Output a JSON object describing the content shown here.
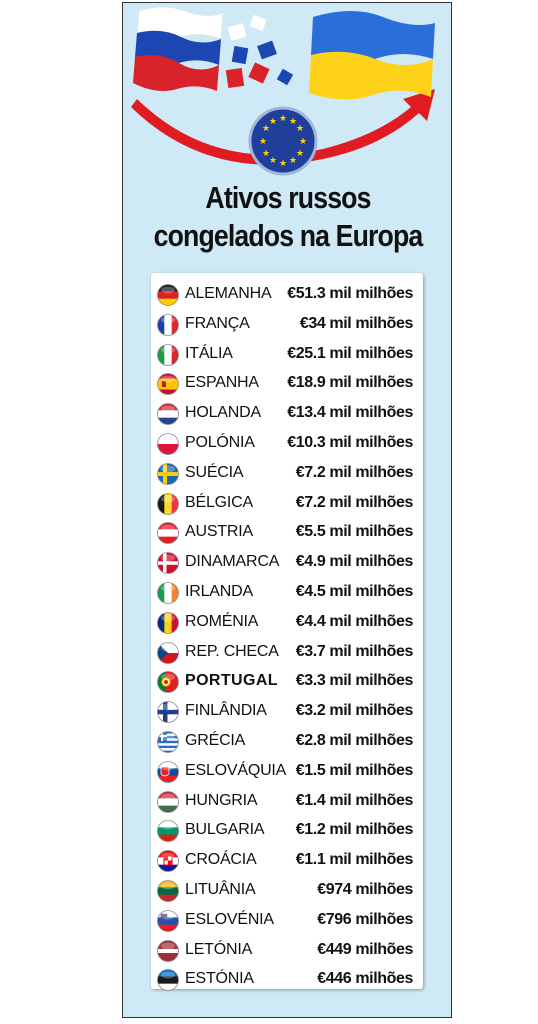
{
  "title": {
    "line1": "Ativos russos",
    "line2": "congelados na Europa"
  },
  "colors": {
    "background": "#cfe9f7",
    "arrow": "#e11b22",
    "eu_blue": "#1f3f9a",
    "eu_stars": "#ffd400"
  },
  "countries": [
    {
      "name": "ALEMANHA",
      "value": "€51.3 mil milhões",
      "flag": "germany-flag-icon"
    },
    {
      "name": "FRANÇA",
      "value": "€34 mil milhões",
      "flag": "france-flag-icon"
    },
    {
      "name": "ITÁLIA",
      "value": "€25.1 mil milhões",
      "flag": "italy-flag-icon"
    },
    {
      "name": "ESPANHA",
      "value": "€18.9 mil milhões",
      "flag": "spain-flag-icon"
    },
    {
      "name": "HOLANDA",
      "value": "€13.4 mil milhões",
      "flag": "netherlands-flag-icon"
    },
    {
      "name": "POLÓNIA",
      "value": "€10.3 mil milhões",
      "flag": "poland-flag-icon"
    },
    {
      "name": "SUÉCIA",
      "value": "€7.2 mil milhões",
      "flag": "sweden-flag-icon"
    },
    {
      "name": "BÉLGICA",
      "value": "€7.2 mil milhões",
      "flag": "belgium-flag-icon"
    },
    {
      "name": "AUSTRIA",
      "value": "€5.5 mil milhões",
      "flag": "austria-flag-icon"
    },
    {
      "name": "DINAMARCA",
      "value": "€4.9 mil milhões",
      "flag": "denmark-flag-icon"
    },
    {
      "name": "IRLANDA",
      "value": "€4.5 mil milhões",
      "flag": "ireland-flag-icon"
    },
    {
      "name": "ROMÉNIA",
      "value": "€4.4 mil milhões",
      "flag": "romania-flag-icon"
    },
    {
      "name": "REP. CHECA",
      "value": "€3.7 mil milhões",
      "flag": "czech-flag-icon"
    },
    {
      "name": "PORTUGAL",
      "value": "€3.3 mil milhões",
      "flag": "portugal-flag-icon",
      "highlight": true
    },
    {
      "name": "FINLÂNDIA",
      "value": "€3.2 mil milhões",
      "flag": "finland-flag-icon"
    },
    {
      "name": "GRÉCIA",
      "value": "€2.8 mil milhões",
      "flag": "greece-flag-icon"
    },
    {
      "name": "ESLOVÁQUIA",
      "value": "€1.5 mil milhões",
      "flag": "slovakia-flag-icon"
    },
    {
      "name": "HUNGRIA",
      "value": "€1.4 mil milhões",
      "flag": "hungary-flag-icon"
    },
    {
      "name": "BULGARIA",
      "value": "€1.2 mil milhões",
      "flag": "bulgaria-flag-icon"
    },
    {
      "name": "CROÁCIA",
      "value": "€1.1 mil milhões",
      "flag": "croatia-flag-icon"
    },
    {
      "name": "LITUÂNIA",
      "value": "€974 milhões",
      "flag": "lithuania-flag-icon"
    },
    {
      "name": "ESLOVÉNIA",
      "value": "€796 milhões",
      "flag": "slovenia-flag-icon"
    },
    {
      "name": "LETÓNIA",
      "value": "€449 milhões",
      "flag": "latvia-flag-icon"
    },
    {
      "name": "ESTÓNIA",
      "value": "€446 milhões",
      "flag": "estonia-flag-icon"
    }
  ]
}
